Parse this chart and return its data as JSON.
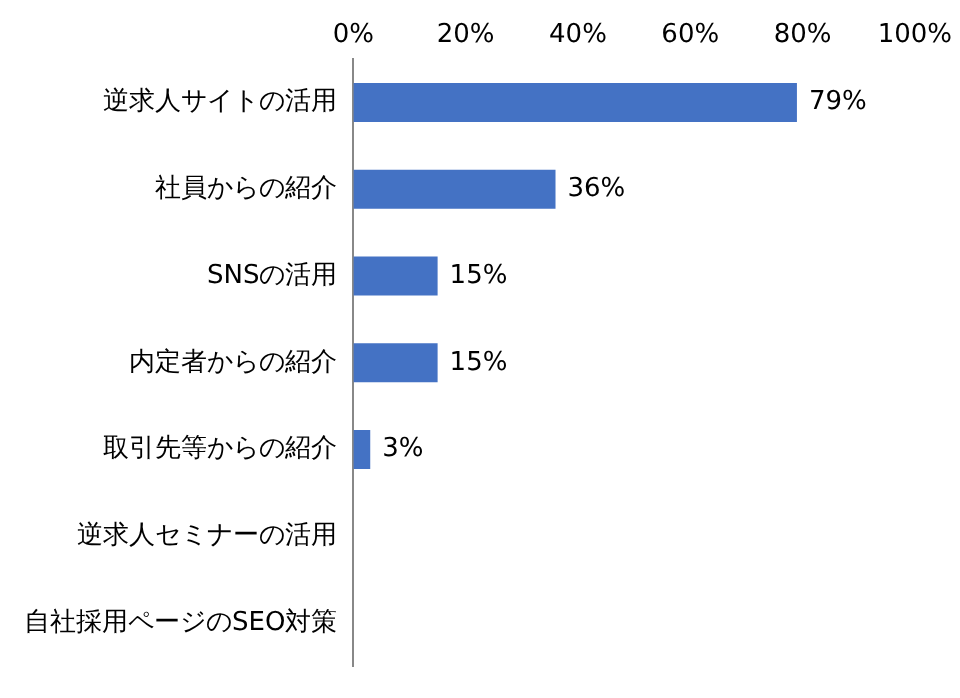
{
  "chart_data": {
    "type": "bar",
    "orientation": "horizontal",
    "categories": [
      "逆求人サイトの活用",
      "社員からの紹介",
      "SNSの活用",
      "内定者からの紹介",
      "取引先等からの紹介",
      "逆求人セミナーの活用",
      "自社採用ページのSEO対策"
    ],
    "values": [
      79,
      36,
      15,
      15,
      3,
      0,
      0
    ],
    "value_labels": [
      "79%",
      "36%",
      "15%",
      "15%",
      "3%",
      null,
      null
    ],
    "color": "#4472c4",
    "xlim": [
      0,
      100
    ],
    "xticks": [
      {
        "value": 0,
        "label": "0%"
      },
      {
        "value": 20,
        "label": "20%"
      },
      {
        "value": 40,
        "label": "40%"
      },
      {
        "value": 60,
        "label": "60%"
      },
      {
        "value": 80,
        "label": "80%"
      },
      {
        "value": 100,
        "label": "100%"
      }
    ],
    "grid": false,
    "legend": false
  }
}
